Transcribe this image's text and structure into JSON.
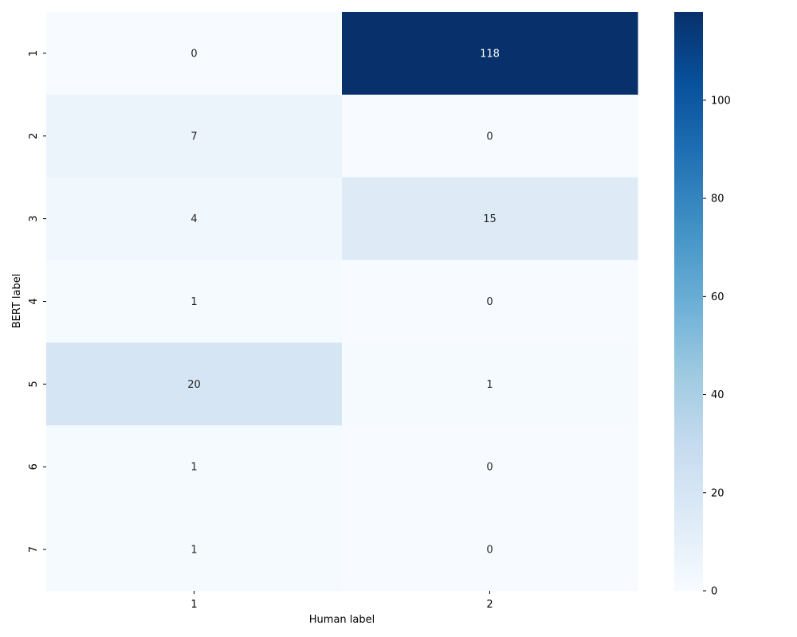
{
  "chart_data": {
    "type": "heatmap",
    "title": "",
    "xlabel": "Human label",
    "ylabel": "BERT label",
    "x_categories": [
      "1",
      "2"
    ],
    "y_categories": [
      "1",
      "2",
      "3",
      "4",
      "5",
      "6",
      "7"
    ],
    "values": [
      [
        0,
        118
      ],
      [
        7,
        0
      ],
      [
        4,
        15
      ],
      [
        1,
        0
      ],
      [
        20,
        1
      ],
      [
        1,
        0
      ],
      [
        1,
        0
      ]
    ],
    "colormap": "Blues",
    "colorbar": {
      "min": 0,
      "max": 118,
      "ticks": [
        "0",
        "20",
        "40",
        "60",
        "80",
        "100"
      ]
    },
    "annotations": true,
    "grid": false
  }
}
